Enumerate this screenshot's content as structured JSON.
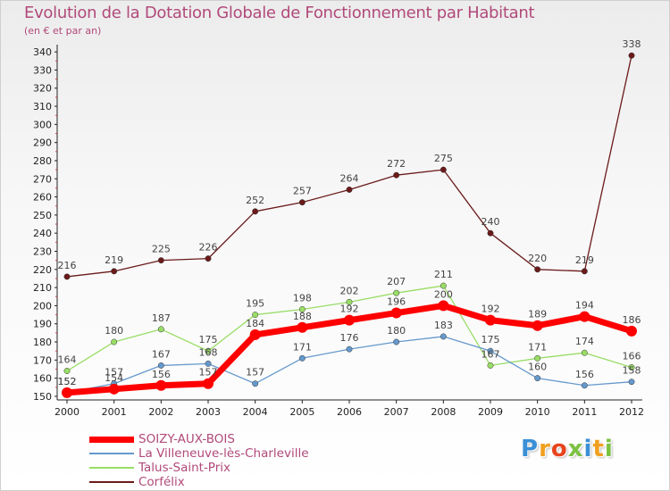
{
  "title": "Evolution de la Dotation Globale de Fonctionnement par Habitant",
  "subtitle": "(en € et par an)",
  "brand": "Proxiti",
  "chart_data": {
    "type": "line",
    "title": "Evolution de la Dotation Globale de Fonctionnement par Habitant",
    "subtitle": "(en € et par an)",
    "x": [
      "2000",
      "2001",
      "2002",
      "2003",
      "2004",
      "2005",
      "2006",
      "2007",
      "2008",
      "2009",
      "2010",
      "2011",
      "2012"
    ],
    "ylim": [
      148,
      344
    ],
    "yticks": [
      150,
      160,
      170,
      180,
      190,
      200,
      210,
      220,
      230,
      240,
      250,
      260,
      270,
      280,
      290,
      300,
      310,
      320,
      330,
      340
    ],
    "grid": false,
    "legend_position": "bottom-left",
    "series": [
      {
        "name": "SOIZY-AUX-BOIS",
        "color": "#ff0000",
        "values": [
          152,
          154,
          156,
          157,
          184,
          188,
          192,
          196,
          200,
          192,
          189,
          194,
          186
        ]
      },
      {
        "name": "La Villeneuve-lès-Charleville",
        "color": "#6699cc",
        "values": [
          152,
          157,
          167,
          168,
          157,
          171,
          176,
          180,
          183,
          175,
          160,
          156,
          158
        ]
      },
      {
        "name": "Talus-Saint-Prix",
        "color": "#99dd66",
        "values": [
          164,
          180,
          187,
          175,
          195,
          198,
          202,
          207,
          211,
          167,
          171,
          174,
          166
        ]
      },
      {
        "name": "Corfélix",
        "color": "#6b1a1a",
        "values": [
          216,
          219,
          225,
          226,
          252,
          257,
          264,
          272,
          275,
          240,
          220,
          219,
          338
        ]
      }
    ],
    "data_labels": [
      [
        "152",
        "154",
        "156",
        "157",
        "184",
        "188",
        "192",
        "196",
        "200",
        "192",
        "189",
        "194",
        "186"
      ],
      [
        "152",
        "157",
        "167",
        "168",
        "157",
        "171",
        "176",
        "180",
        "183",
        "175",
        "160",
        "156",
        "158"
      ],
      [
        "164",
        "180",
        "187",
        "175",
        "195",
        "198",
        "202",
        "207",
        "211",
        "167",
        "171",
        "174",
        "166"
      ],
      [
        "216",
        "219",
        "225",
        "226",
        "252",
        "257",
        "264",
        "272",
        "275",
        "240",
        "220",
        "219",
        "338"
      ]
    ]
  }
}
